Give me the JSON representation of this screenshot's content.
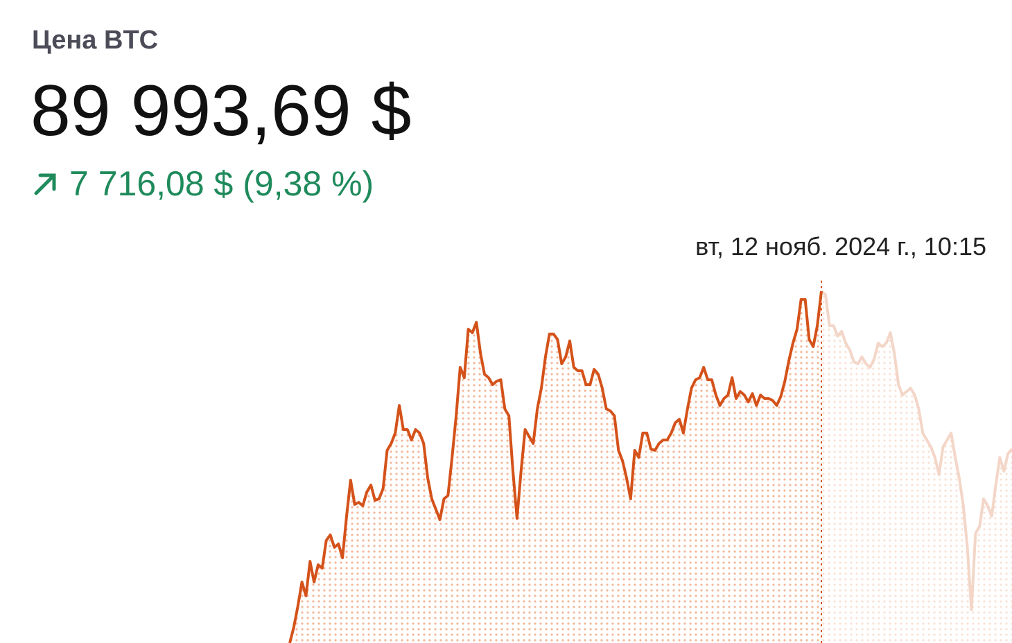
{
  "header": {
    "title": "Цена BTC",
    "price": "89 993,69 $",
    "change": "7 716,08 $ (9,38 %)"
  },
  "chart_data": {
    "type": "line",
    "hover_label": "вт, 12 нояб. 2024 г., 10:15",
    "hover_index": 131,
    "color": "#d4521a",
    "faded_color": "#f3d6c8",
    "ylim": [
      82278,
      90300
    ],
    "values": [
      82278,
      82627,
      83083,
      83615,
      83311,
      84070,
      83615,
      83994,
      83919,
      84526,
      84648,
      84374,
      84450,
      84146,
      85058,
      85848,
      85316,
      85362,
      85286,
      85589,
      85741,
      85407,
      85438,
      85665,
      86501,
      86653,
      86881,
      87488,
      86957,
      86957,
      86729,
      86957,
      86881,
      86653,
      85893,
      85438,
      85210,
      84982,
      85438,
      85513,
      86349,
      87260,
      88324,
      88096,
      89159,
      89083,
      89311,
      88627,
      88172,
      88096,
      87944,
      88020,
      88050,
      87412,
      87260,
      86045,
      85012,
      86045,
      86957,
      86805,
      86653,
      87412,
      87868,
      88551,
      89053,
      89053,
      88931,
      88400,
      88551,
      88901,
      88324,
      88248,
      88248,
      87944,
      87944,
      88278,
      88172,
      87868,
      87412,
      87367,
      87260,
      86501,
      86273,
      85893,
      85438,
      86501,
      86349,
      86881,
      86881,
      86531,
      86501,
      86653,
      86729,
      86729,
      86881,
      87108,
      87184,
      86881,
      87412,
      87868,
      88050,
      88096,
      88324,
      88050,
      88050,
      87716,
      87488,
      87640,
      87716,
      88096,
      87640,
      87792,
      87716,
      87564,
      87746,
      87488,
      87716,
      87640,
      87640,
      87595,
      87488,
      87686,
      88020,
      88476,
      88855,
      89159,
      89812,
      89812,
      88931,
      88779,
      89235,
      89993.69,
      89919,
      89235,
      89235,
      89007,
      89114,
      88855,
      88703,
      88445,
      88400,
      88551,
      88400,
      88324,
      88506,
      88855,
      88779,
      88855,
      89083,
      88627,
      87944,
      87716,
      87792,
      87868,
      87716,
      87412,
      86881,
      86729,
      86577,
      86349,
      85969,
      86577,
      86729,
      86881,
      86349,
      85893,
      85286,
      84374,
      83007,
      84678,
      84830,
      85438,
      85286,
      85058,
      85741,
      86349,
      86045,
      86425,
      86531
    ]
  }
}
